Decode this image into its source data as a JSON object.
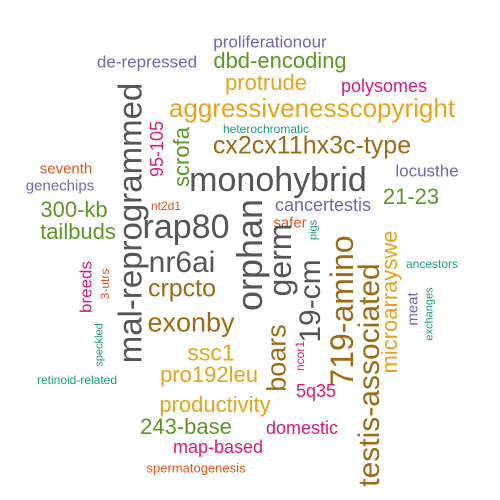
{
  "words": [
    {
      "id": "w0",
      "text": "proliferationour",
      "color": "#7266b0"
    },
    {
      "id": "w1",
      "text": "de-repressed",
      "color": "#7266b0"
    },
    {
      "id": "w2",
      "text": "dbd-encoding",
      "color": "#5a9a22"
    },
    {
      "id": "w3",
      "text": "protrude",
      "color": "#e8a31a"
    },
    {
      "id": "w4",
      "text": "polysomes",
      "color": "#d81b7a"
    },
    {
      "id": "w5",
      "text": "aggressivenesscopyright",
      "color": "#e8a31a"
    },
    {
      "id": "w6",
      "text": "mal-reprogrammed",
      "color": "#555555"
    },
    {
      "id": "w7",
      "text": "95-105",
      "color": "#d81b7a"
    },
    {
      "id": "w8",
      "text": "scrofa",
      "color": "#5a9a22"
    },
    {
      "id": "w9",
      "text": "heterochromatic",
      "color": "#1a9c7a"
    },
    {
      "id": "w10",
      "text": "cx2cx11hx3c-type",
      "color": "#9e6a12"
    },
    {
      "id": "w11",
      "text": "seventh",
      "color": "#d7571c"
    },
    {
      "id": "w12",
      "text": "monohybrid",
      "color": "#555555"
    },
    {
      "id": "w13",
      "text": "locusthe",
      "color": "#7266b0"
    },
    {
      "id": "w14",
      "text": "genechips",
      "color": "#7266b0"
    },
    {
      "id": "w15",
      "text": "21-23",
      "color": "#5a9a22"
    },
    {
      "id": "w16",
      "text": "nt2d1",
      "color": "#d7571c"
    },
    {
      "id": "w17",
      "text": "300-kb",
      "color": "#5a9a22"
    },
    {
      "id": "w18",
      "text": "cancertestis",
      "color": "#7266b0"
    },
    {
      "id": "w19",
      "text": "rap80",
      "color": "#555555"
    },
    {
      "id": "w20",
      "text": "safer",
      "color": "#d7571c"
    },
    {
      "id": "w21",
      "text": "tailbuds",
      "color": "#5a9a22"
    },
    {
      "id": "w22",
      "text": "pigs",
      "color": "#1a9c7a"
    },
    {
      "id": "w23",
      "text": "nr6ai",
      "color": "#555555"
    },
    {
      "id": "w24",
      "text": "orphan",
      "color": "#555555"
    },
    {
      "id": "w25",
      "text": "germ",
      "color": "#555555"
    },
    {
      "id": "w26",
      "text": "ancestors",
      "color": "#1a9c7a"
    },
    {
      "id": "w27",
      "text": "breeds",
      "color": "#d81b7a"
    },
    {
      "id": "w28",
      "text": "3-utrs",
      "color": "#d7571c"
    },
    {
      "id": "w29",
      "text": "crpcto",
      "color": "#9e6a12"
    },
    {
      "id": "w30",
      "text": "19-cm",
      "color": "#555555"
    },
    {
      "id": "w31",
      "text": "719-amino",
      "color": "#9e6a12"
    },
    {
      "id": "w32",
      "text": "microarrayswe",
      "color": "#e8a31a"
    },
    {
      "id": "w33",
      "text": "meat",
      "color": "#7266b0"
    },
    {
      "id": "w34",
      "text": "exchanges",
      "color": "#1a9c7a"
    },
    {
      "id": "w35",
      "text": "exonby",
      "color": "#9e6a12"
    },
    {
      "id": "w36",
      "text": "boars",
      "color": "#9e6a12"
    },
    {
      "id": "w37",
      "text": "testis-associated",
      "color": "#9e6a12"
    },
    {
      "id": "w38",
      "text": "speckled",
      "color": "#1a9c7a"
    },
    {
      "id": "w39",
      "text": "ssc1",
      "color": "#e8a31a"
    },
    {
      "id": "w40",
      "text": "ncor1",
      "color": "#d81b7a"
    },
    {
      "id": "w41",
      "text": "pro192leu",
      "color": "#e8a31a"
    },
    {
      "id": "w42",
      "text": "retinoid-related",
      "color": "#1a9c7a"
    },
    {
      "id": "w43",
      "text": "5q35",
      "color": "#d81b7a"
    },
    {
      "id": "w44",
      "text": "productivity",
      "color": "#e8a31a"
    },
    {
      "id": "w45",
      "text": "243-base",
      "color": "#5a9a22"
    },
    {
      "id": "w46",
      "text": "domestic",
      "color": "#d81b7a"
    },
    {
      "id": "w47",
      "text": "map-based",
      "color": "#d81b7a"
    },
    {
      "id": "w48",
      "text": "spermatogenesis",
      "color": "#d7571c"
    }
  ]
}
